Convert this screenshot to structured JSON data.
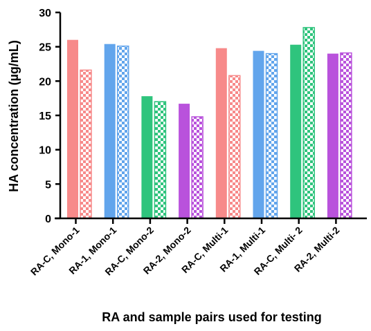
{
  "chart_data": {
    "type": "bar",
    "title": "",
    "xlabel": "RA and sample pairs used for testing",
    "ylabel": "HA concentration (µg/mL)",
    "ylim": [
      0,
      30
    ],
    "yticks": [
      0,
      5,
      10,
      15,
      20,
      25,
      30
    ],
    "categories": [
      "RA-C, Mono-1",
      "RA-1, Mono-1",
      "RA-C, Mono-2",
      "RA-2, Mono-2",
      "RA-C, Multi-1",
      "RA-1, Multi-1",
      "RA-C, Multi- 2",
      "RA-2, Multi-2"
    ],
    "series": [
      {
        "style": "solid",
        "values": [
          26.0,
          25.4,
          17.8,
          16.7,
          24.8,
          24.4,
          25.3,
          24.0
        ]
      },
      {
        "style": "checkered",
        "values": [
          21.6,
          25.1,
          17.0,
          14.8,
          20.8,
          24.0,
          27.8,
          24.1
        ]
      }
    ],
    "category_colors": [
      "#f78a8a",
      "#62a5ec",
      "#2fc47d",
      "#b952dc",
      "#f78a8a",
      "#62a5ec",
      "#2fc47d",
      "#b952dc"
    ],
    "grid": false,
    "legend": "none"
  }
}
